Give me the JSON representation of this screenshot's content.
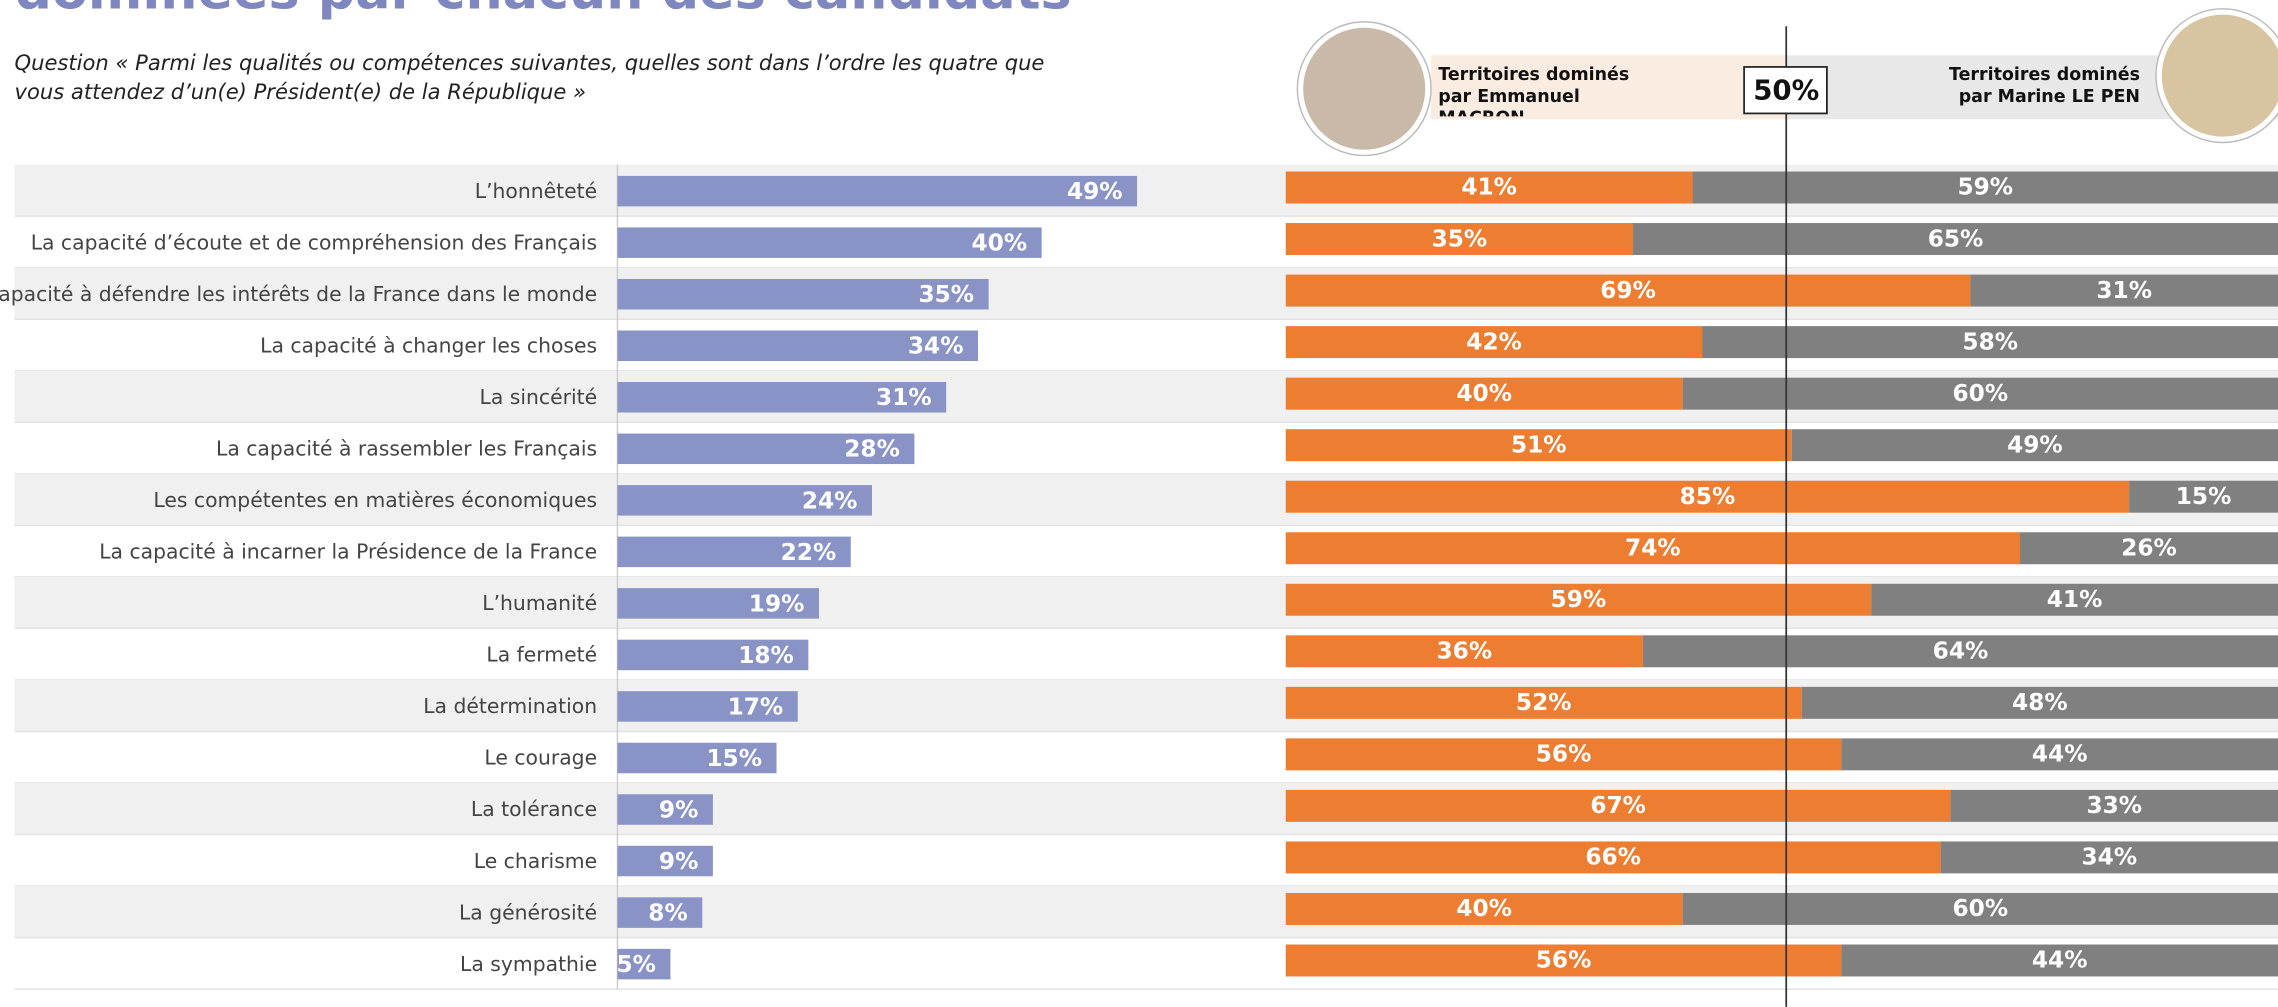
{
  "chart_data": [
    {
      "type": "bar",
      "orientation": "horizontal",
      "title": "dominées par chacun des candidats",
      "subtitle": "Question « Parmi les qualités ou compétences suivantes, quelles sont dans l’ordre les quatre que vous attendez d’un(e) Président(e) de la République »",
      "categories": [
        "L’honnêteté",
        "La capacité d’écoute et de compréhension des Français",
        "La capacité à défendre les intérêts de la France dans le monde",
        "La capacité à changer les choses",
        "La sincérité",
        "La capacité à rassembler les Français",
        "Les compétentes en matières économiques",
        "La capacité à incarner la Présidence de la France",
        "L’humanité",
        "La fermeté",
        "La détermination",
        "Le courage",
        "La tolérance",
        "Le charisme",
        "La générosité",
        "La sympathie"
      ],
      "values": [
        49,
        40,
        35,
        34,
        31,
        28,
        24,
        22,
        19,
        18,
        17,
        15,
        9,
        9,
        8,
        5
      ],
      "value_labels": [
        "49%",
        "40%",
        "35%",
        "34%",
        "31%",
        "28%",
        "24%",
        "22%",
        "19%",
        "18%",
        "17%",
        "15%",
        "9%",
        "9%",
        "8%",
        "5%"
      ],
      "color": "#8a93c6",
      "xlim": [
        0,
        60
      ]
    },
    {
      "type": "stacked-bar",
      "orientation": "horizontal",
      "xlim": [
        0,
        100
      ],
      "reference": {
        "value": 50,
        "label": "50%"
      },
      "series": [
        {
          "name": "Territoires dominés par Emmanuel MACRON",
          "color": "#ed7d31",
          "values": [
            41,
            35,
            69,
            42,
            40,
            51,
            85,
            74,
            59,
            36,
            52,
            56,
            67,
            66,
            40,
            56
          ],
          "value_labels": [
            "41%",
            "35%",
            "69%",
            "42%",
            "40%",
            "51%",
            "85%",
            "74%",
            "59%",
            "36%",
            "52%",
            "56%",
            "67%",
            "66%",
            "40%",
            "56%"
          ]
        },
        {
          "name": "Territoires dominés par Marine LE PEN",
          "color": "#808080",
          "values": [
            59,
            65,
            31,
            58,
            60,
            49,
            15,
            26,
            41,
            64,
            48,
            44,
            33,
            34,
            60,
            44
          ],
          "value_labels": [
            "59%",
            "65%",
            "31%",
            "58%",
            "60%",
            "49%",
            "15%",
            "26%",
            "41%",
            "64%",
            "48%",
            "44%",
            "33%",
            "34%",
            "60%",
            "44%"
          ]
        }
      ]
    }
  ]
}
